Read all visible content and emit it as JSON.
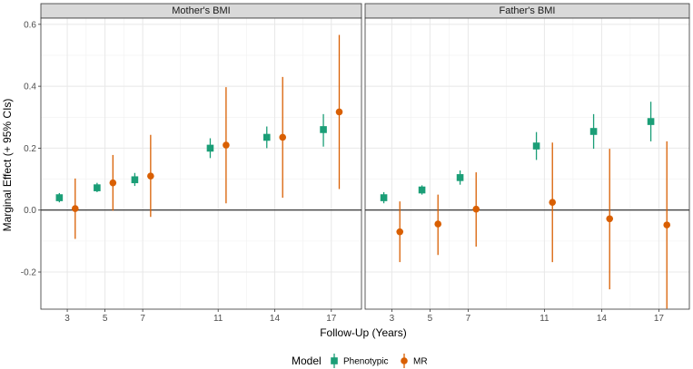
{
  "chart_data": {
    "type": "scatter",
    "xlabel": "Follow-Up (Years)",
    "ylabel": "Marginal Effect (+ 95% CIs)",
    "x_ticks": [
      3,
      5,
      7,
      11,
      14,
      17
    ],
    "xlim": [
      1.6,
      18.6
    ],
    "y_ticks": [
      -0.2,
      0.0,
      0.2,
      0.4,
      0.6
    ],
    "y_tick_labels": [
      "-0.2",
      "0.0",
      "0.2",
      "0.4",
      "0.6"
    ],
    "ylim": [
      -0.32,
      0.62
    ],
    "grid": true,
    "legend": {
      "title": "Model",
      "position": "bottom",
      "entries": [
        {
          "name": "Phenotypic",
          "color": "#1b9e77",
          "shape": "square"
        },
        {
          "name": "MR",
          "color": "#d95f02",
          "shape": "circle"
        }
      ]
    },
    "facets": [
      {
        "title": "Mother's BMI",
        "series": [
          {
            "name": "Phenotypic",
            "points": [
              {
                "x": 3,
                "y": 0.04,
                "lo": 0.025,
                "hi": 0.055
              },
              {
                "x": 5,
                "y": 0.072,
                "lo": 0.058,
                "hi": 0.088
              },
              {
                "x": 7,
                "y": 0.098,
                "lo": 0.078,
                "hi": 0.12
              },
              {
                "x": 11,
                "y": 0.2,
                "lo": 0.168,
                "hi": 0.232
              },
              {
                "x": 14,
                "y": 0.235,
                "lo": 0.2,
                "hi": 0.27
              },
              {
                "x": 17,
                "y": 0.26,
                "lo": 0.205,
                "hi": 0.31
              }
            ]
          },
          {
            "name": "MR",
            "points": [
              {
                "x": 3,
                "y": 0.005,
                "lo": -0.093,
                "hi": 0.102
              },
              {
                "x": 5,
                "y": 0.088,
                "lo": -0.002,
                "hi": 0.178
              },
              {
                "x": 7,
                "y": 0.11,
                "lo": -0.022,
                "hi": 0.243
              },
              {
                "x": 11,
                "y": 0.21,
                "lo": 0.022,
                "hi": 0.397
              },
              {
                "x": 14,
                "y": 0.235,
                "lo": 0.04,
                "hi": 0.43
              },
              {
                "x": 17,
                "y": 0.317,
                "lo": 0.068,
                "hi": 0.566
              }
            ]
          }
        ]
      },
      {
        "title": "Father's BMI",
        "series": [
          {
            "name": "Phenotypic",
            "points": [
              {
                "x": 3,
                "y": 0.04,
                "lo": 0.022,
                "hi": 0.058
              },
              {
                "x": 5,
                "y": 0.065,
                "lo": 0.05,
                "hi": 0.08
              },
              {
                "x": 7,
                "y": 0.105,
                "lo": 0.082,
                "hi": 0.128
              },
              {
                "x": 11,
                "y": 0.207,
                "lo": 0.162,
                "hi": 0.252
              },
              {
                "x": 14,
                "y": 0.254,
                "lo": 0.198,
                "hi": 0.31
              },
              {
                "x": 17,
                "y": 0.286,
                "lo": 0.222,
                "hi": 0.35
              }
            ]
          },
          {
            "name": "MR",
            "points": [
              {
                "x": 3,
                "y": -0.07,
                "lo": -0.168,
                "hi": 0.028
              },
              {
                "x": 5,
                "y": -0.045,
                "lo": -0.145,
                "hi": 0.05
              },
              {
                "x": 7,
                "y": 0.003,
                "lo": -0.118,
                "hi": 0.122
              },
              {
                "x": 11,
                "y": 0.025,
                "lo": -0.168,
                "hi": 0.218
              },
              {
                "x": 14,
                "y": -0.028,
                "lo": -0.256,
                "hi": 0.198
              },
              {
                "x": 17,
                "y": -0.048,
                "lo": -0.318,
                "hi": 0.222
              }
            ]
          }
        ]
      }
    ]
  }
}
